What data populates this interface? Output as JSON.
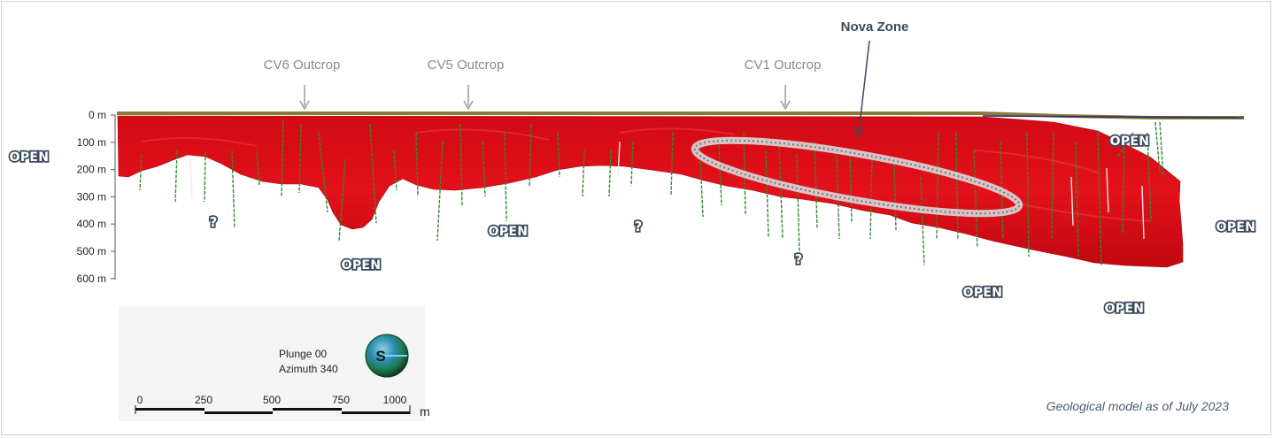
{
  "outcrops": [
    {
      "label": "CV6 Outcrop"
    },
    {
      "label": "CV5 Outcrop"
    },
    {
      "label": "CV1 Outcrop"
    }
  ],
  "nova_zone_label": "Nova Zone",
  "depth_ticks": [
    "0 m",
    "100 m",
    "200 m",
    "300 m",
    "400 m",
    "500 m",
    "600 m"
  ],
  "open_label": "OPEN",
  "question_label": "?",
  "legend": {
    "plunge": "Plunge 00",
    "azimuth": "Azimuth 340",
    "compass_letter": "S"
  },
  "scale_bar": {
    "ticks": [
      "0",
      "250",
      "500",
      "750",
      "1000"
    ],
    "unit": "m"
  },
  "caption": "Geological model as of July 2023",
  "colors": {
    "orebody": "#e0101a",
    "drillhole": "#2f8a2f",
    "surface": "#8a7a3a",
    "nova_ring": "#ffffff"
  }
}
